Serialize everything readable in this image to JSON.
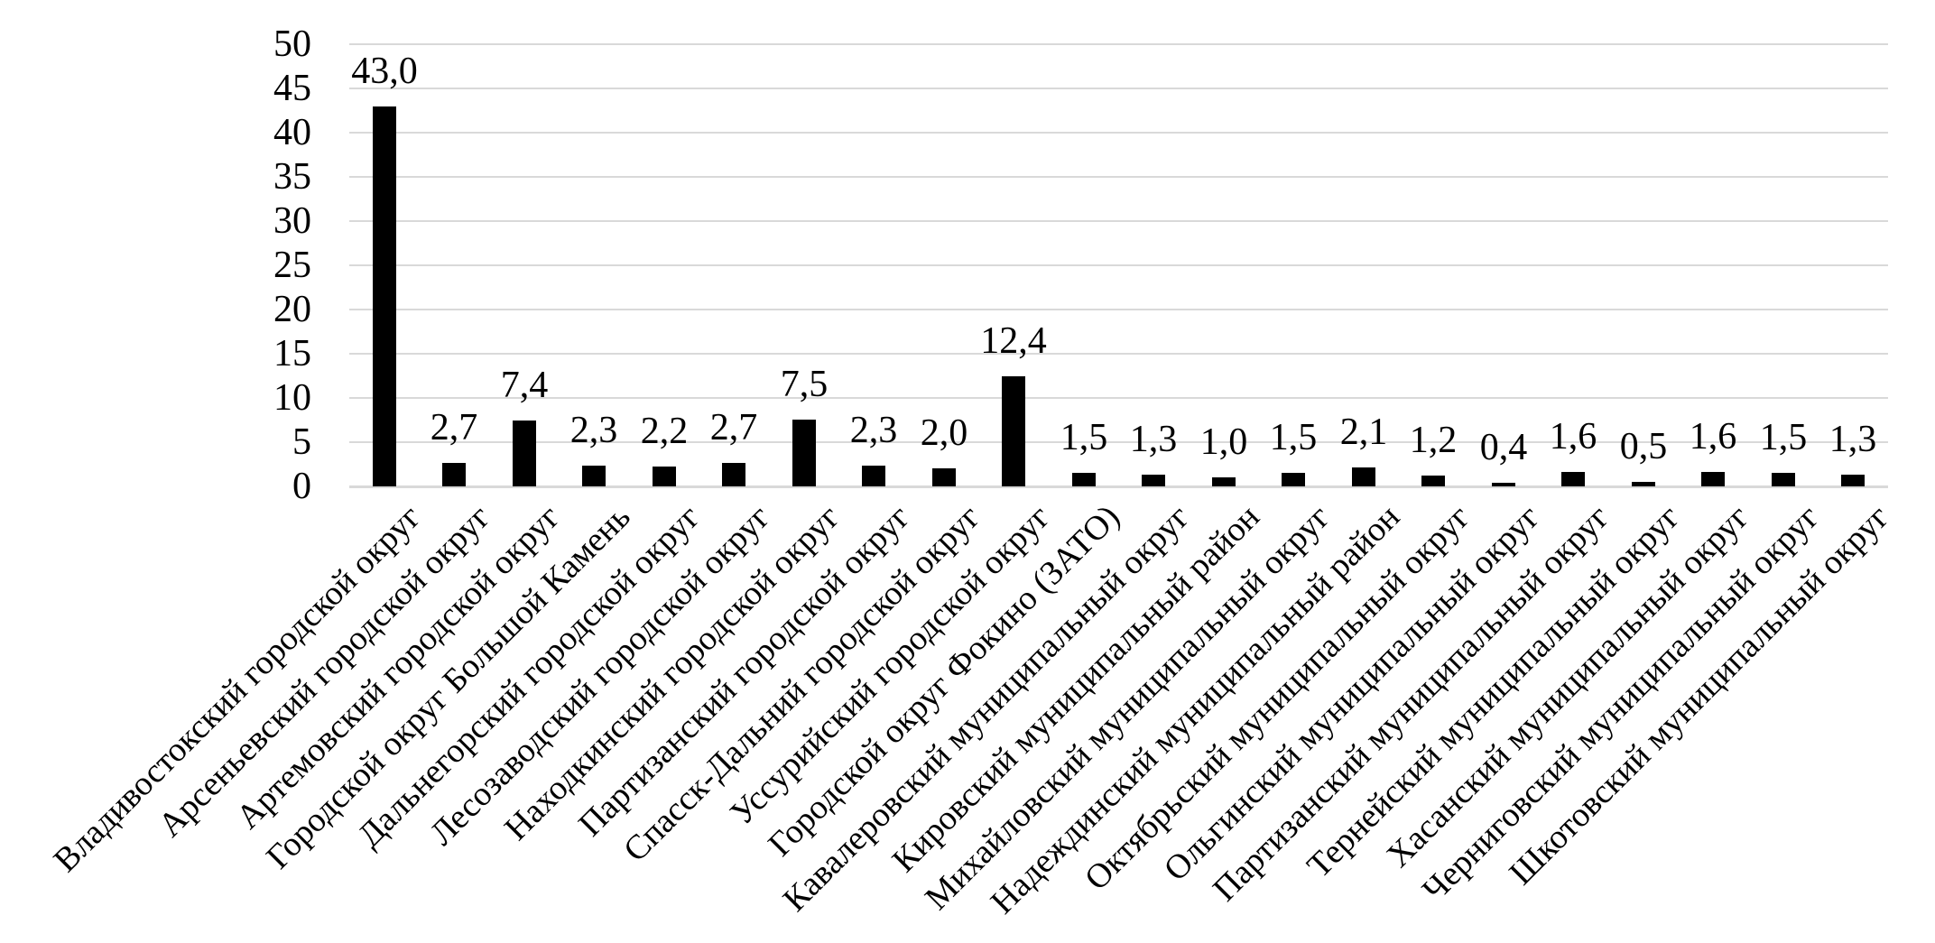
{
  "chart_data": {
    "type": "bar",
    "title": "",
    "xlabel": "",
    "ylabel": "",
    "legend": "none",
    "background_color": "#ffffff",
    "bar_color": "#000000",
    "text_color": "#000000",
    "gridline_color": "#d9d9d9",
    "grid": "horizontal",
    "ylim": [
      0,
      50
    ],
    "y_ticks": [
      "0",
      "5",
      "10",
      "15",
      "20",
      "25",
      "30",
      "35",
      "40",
      "45",
      "50"
    ],
    "categories": [
      "Владивостокский городской округ",
      "Арсеньевский городской округ",
      "Артемовский городской округ",
      "Городской округ Большой Камень",
      "Дальнегорский городской округ",
      "Лесозаводский городской округ",
      "Находкинский городской округ",
      "Партизанский городской округ",
      "Спасск-Дальний городской округ",
      "Уссурийский городской округ",
      "Городской округ Фокино (ЗАТО)",
      "Кавалеровский муниципальный округ",
      "Кировский муниципальный район",
      "Михайловский муниципальный округ",
      "Надеждинский муниципальный район",
      "Октябрьский муниципальный округ",
      "Ольгинский муниципальный округ",
      "Партизанский муниципальный округ",
      "Тернейский муниципальный округ",
      "Хасанский муниципальный округ",
      "Черниговский муниципальный округ",
      "Шкотовский муниципальный округ"
    ],
    "values": [
      43.0,
      2.7,
      7.4,
      2.3,
      2.2,
      2.7,
      7.5,
      2.3,
      2.0,
      12.4,
      1.5,
      1.3,
      1.0,
      1.5,
      2.1,
      1.2,
      0.4,
      1.6,
      0.5,
      1.6,
      1.5,
      1.3
    ],
    "value_labels": [
      "43,0",
      "2,7",
      "7,4",
      "2,3",
      "2,2",
      "2,7",
      "7,5",
      "2,3",
      "2,0",
      "12,4",
      "1,5",
      "1,3",
      "1,0",
      "1,5",
      "2,1",
      "1,2",
      "0,4",
      "1,6",
      "0,5",
      "1,6",
      "1,5",
      "1,3"
    ]
  }
}
